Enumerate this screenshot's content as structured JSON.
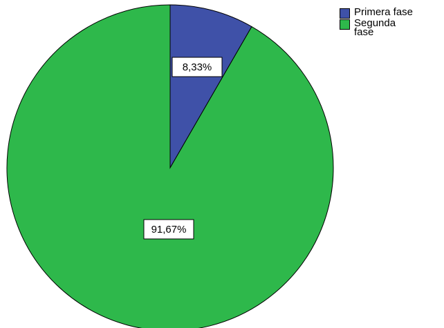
{
  "chart_data": {
    "type": "pie",
    "title": "",
    "categories": [
      "Primera fase",
      "Segunda fase"
    ],
    "values": [
      8.33,
      91.67
    ],
    "data_labels": [
      "8,33%",
      "91,67%"
    ],
    "colors": [
      "#3f51a8",
      "#2eb84b"
    ],
    "start_angle_deg": 0,
    "direction": "clockwise",
    "legend_position": "top-right"
  }
}
